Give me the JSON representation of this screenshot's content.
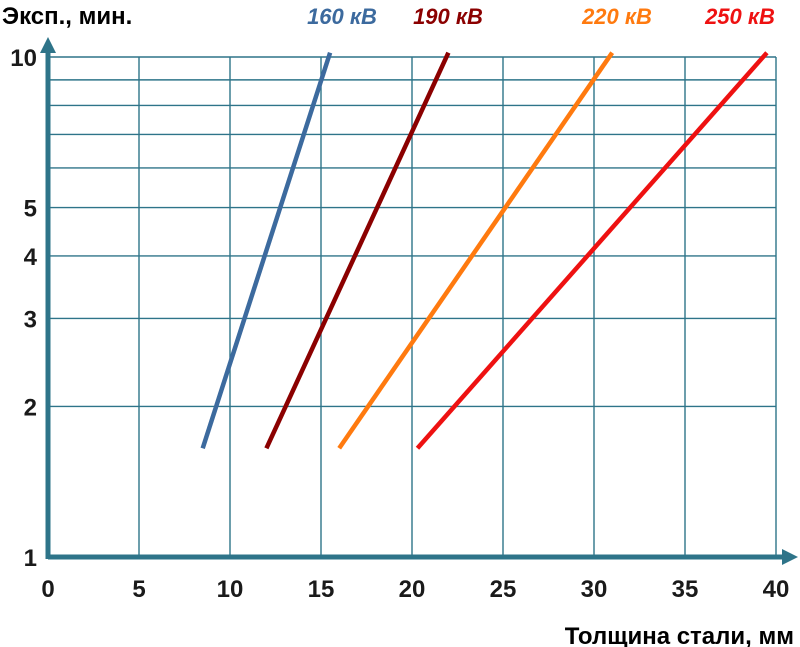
{
  "chart_data": {
    "type": "line",
    "title": "",
    "ylabel": "Эксп., мин.",
    "xlabel": "Толщина стали, мм",
    "xlim": [
      0,
      40
    ],
    "ylim": [
      1,
      10
    ],
    "yscale": "log",
    "grid": true,
    "x_ticks": [
      "0",
      "5",
      "10",
      "15",
      "20",
      "25",
      "30",
      "35",
      "40"
    ],
    "y_ticks": [
      {
        "value": 1,
        "label": "1"
      },
      {
        "value": 2,
        "label": "2"
      },
      {
        "value": 3,
        "label": "3"
      },
      {
        "value": 4,
        "label": "4"
      },
      {
        "value": 5,
        "label": "5"
      },
      {
        "value": 10,
        "label": "10"
      }
    ],
    "y_minor_gridlines": [
      6,
      7,
      8,
      9
    ],
    "axis_color": "#2E7489",
    "grid_color": "#2E7489",
    "series": [
      {
        "name": "160 кВ",
        "color": "#3C6A9E",
        "x": [
          8.5,
          15.5
        ],
        "y": [
          1.65,
          10.2
        ]
      },
      {
        "name": "190 кВ",
        "color": "#8B0000",
        "x": [
          12,
          22
        ],
        "y": [
          1.65,
          10.2
        ]
      },
      {
        "name": "220 кВ",
        "color": "#FF7A0F",
        "x": [
          16,
          31
        ],
        "y": [
          1.65,
          10.2
        ]
      },
      {
        "name": "250 кВ",
        "color": "#EE1111",
        "x": [
          20.3,
          39.5
        ],
        "y": [
          1.65,
          10.2
        ]
      }
    ]
  }
}
